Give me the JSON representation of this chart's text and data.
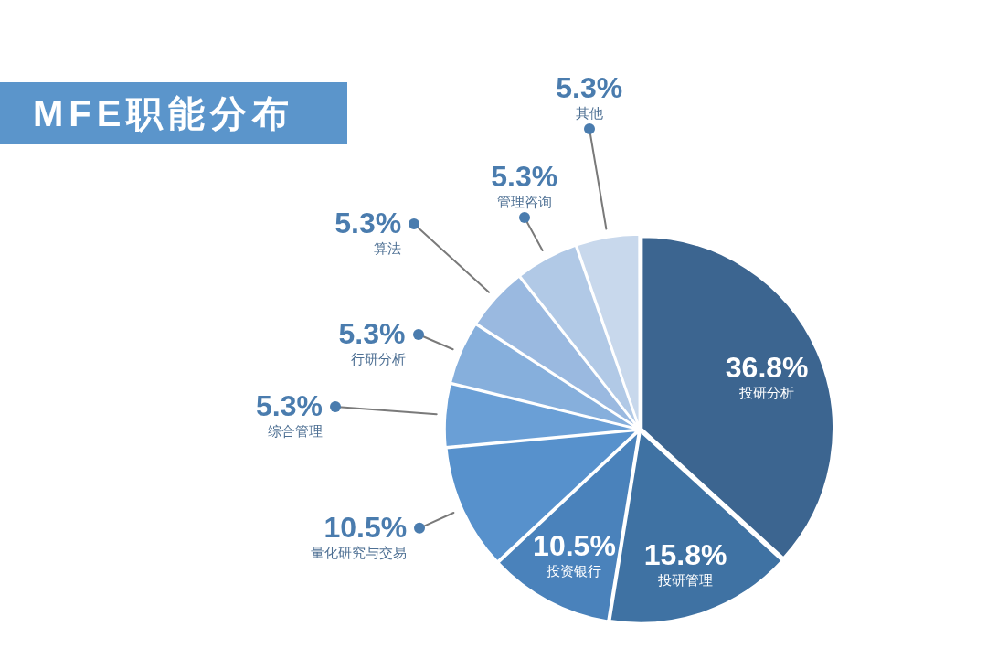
{
  "chart_data": {
    "type": "pie",
    "title": "MFE职能分布",
    "categories": [
      "投研分析",
      "投研管理",
      "投资银行",
      "量化研究与交易",
      "综合管理",
      "行研分析",
      "算法",
      "管理咨询",
      "其他"
    ],
    "values": [
      36.8,
      15.8,
      10.5,
      10.5,
      5.3,
      5.3,
      5.3,
      5.3,
      5.3
    ],
    "value_labels": [
      "36.8%",
      "15.8%",
      "10.5%",
      "10.5%",
      "5.3%",
      "5.3%",
      "5.3%",
      "5.3%",
      "5.3%"
    ],
    "colors": [
      "#3c6590",
      "#3f72a3",
      "#4a82bb",
      "#5791cc",
      "#6a9fd6",
      "#86afdc",
      "#9ab9e0",
      "#b1c9e6",
      "#c8d8ec"
    ],
    "legend": false
  }
}
